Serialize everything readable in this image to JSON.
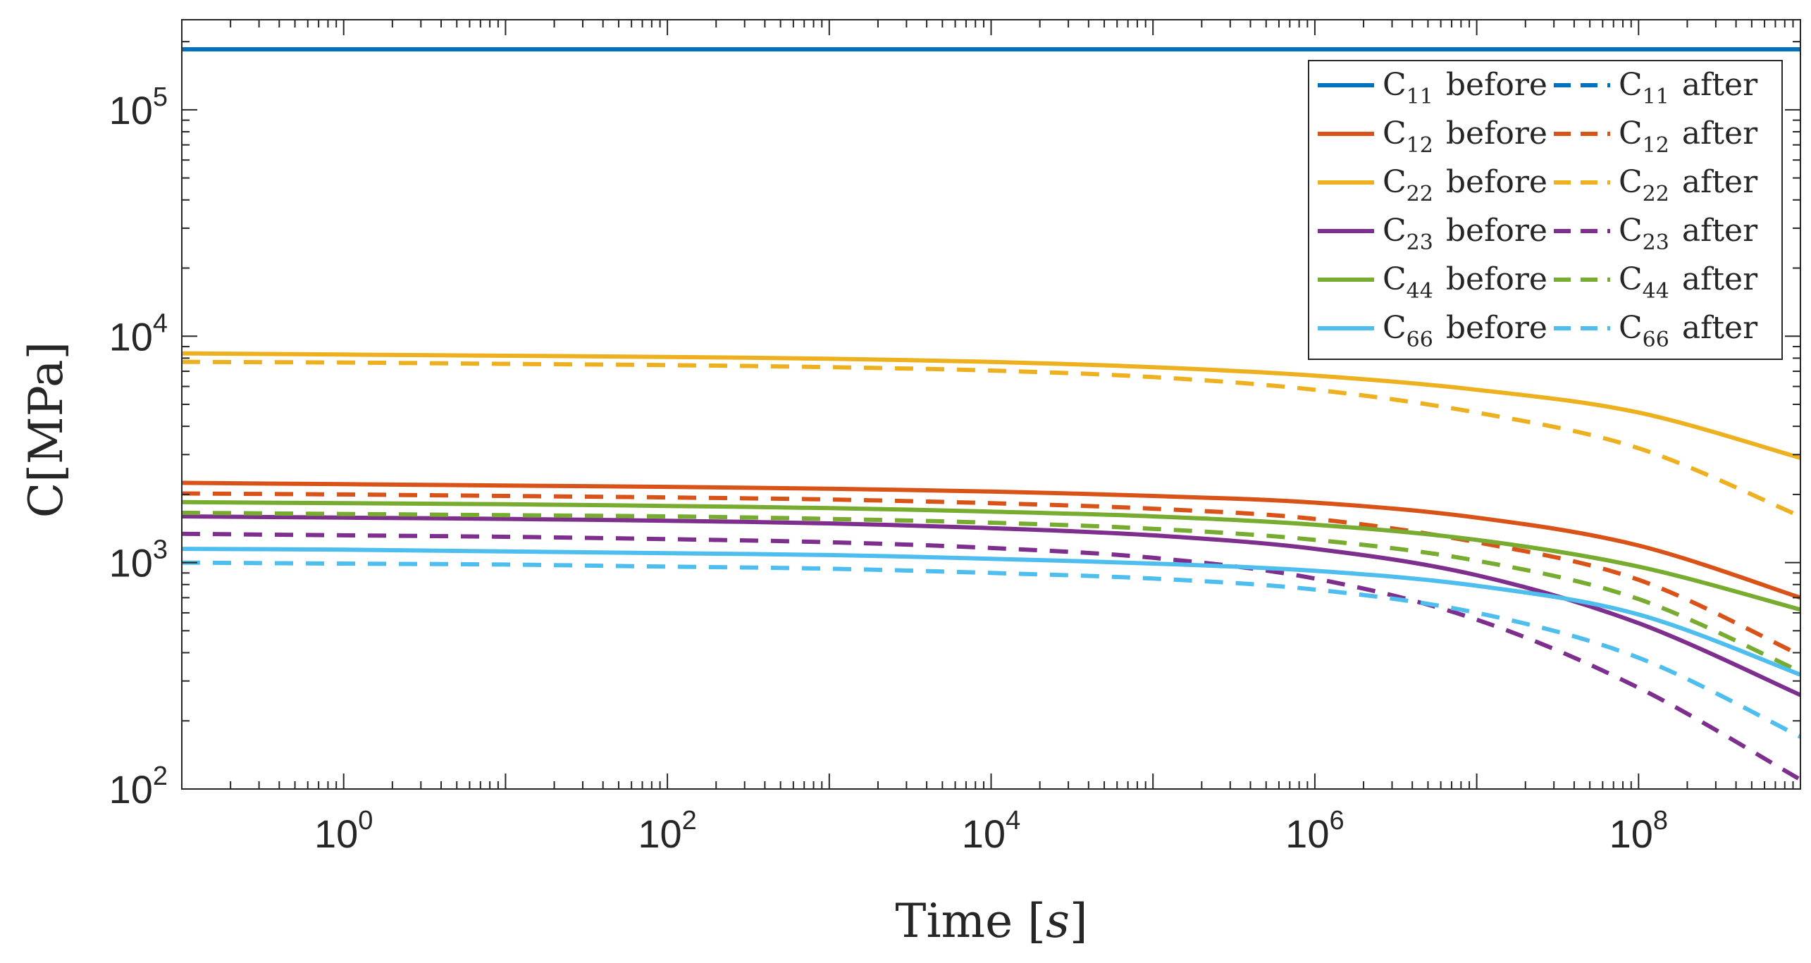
{
  "chart_data": {
    "type": "line",
    "title": "",
    "xlabel": "Time [s]",
    "xlabel_parts": {
      "prefix": "Time [",
      "var": "s",
      "suffix": "]"
    },
    "ylabel": "C[MPa]",
    "xscale": "log",
    "yscale": "log",
    "xlim": [
      0.1,
      1000000000
    ],
    "ylim": [
      100,
      250000
    ],
    "xticks": [
      1,
      100,
      10000,
      1000000,
      100000000
    ],
    "xtick_labels": [
      {
        "base": "10",
        "exp": "0"
      },
      {
        "base": "10",
        "exp": "2"
      },
      {
        "base": "10",
        "exp": "4"
      },
      {
        "base": "10",
        "exp": "6"
      },
      {
        "base": "10",
        "exp": "8"
      }
    ],
    "yticks": [
      100,
      1000,
      10000,
      100000
    ],
    "ytick_labels": [
      {
        "base": "10",
        "exp": "2"
      },
      {
        "base": "10",
        "exp": "3"
      },
      {
        "base": "10",
        "exp": "4"
      },
      {
        "base": "10",
        "exp": "5"
      }
    ],
    "legend_position": "top-right",
    "x": [
      0.1,
      1,
      10,
      100,
      1000,
      10000,
      100000,
      1000000,
      10000000,
      100000000,
      1000000000
    ],
    "series": [
      {
        "name": "C11 before",
        "sym": "C",
        "sub": "11",
        "word": "before",
        "color": "#0072BD",
        "dash": false,
        "values": [
          185000,
          185000,
          185000,
          185000,
          185000,
          185000,
          185000,
          185000,
          185000,
          185000,
          185000
        ]
      },
      {
        "name": "C11 after",
        "sym": "C",
        "sub": "11",
        "word": "after",
        "color": "#0072BD",
        "dash": true,
        "values": [
          185000,
          185000,
          185000,
          185000,
          185000,
          185000,
          185000,
          185000,
          185000,
          185000,
          185000
        ]
      },
      {
        "name": "C12 before",
        "sym": "C",
        "sub": "12",
        "word": "before",
        "color": "#D95319",
        "dash": false,
        "values": [
          2250,
          2220,
          2190,
          2160,
          2120,
          2060,
          1970,
          1840,
          1580,
          1190,
          700
        ]
      },
      {
        "name": "C12 after",
        "sym": "C",
        "sub": "12",
        "word": "after",
        "color": "#D95319",
        "dash": true,
        "values": [
          2020,
          2000,
          1970,
          1940,
          1900,
          1830,
          1730,
          1560,
          1230,
          840,
          390
        ]
      },
      {
        "name": "C22 before",
        "sym": "C",
        "sub": "22",
        "word": "before",
        "color": "#EDB120",
        "dash": false,
        "values": [
          8400,
          8300,
          8200,
          8100,
          7950,
          7700,
          7300,
          6700,
          5800,
          4600,
          2900
        ]
      },
      {
        "name": "C22 after",
        "sym": "C",
        "sub": "22",
        "word": "after",
        "color": "#EDB120",
        "dash": true,
        "values": [
          7700,
          7650,
          7550,
          7450,
          7300,
          7050,
          6600,
          5800,
          4600,
          3200,
          1600
        ]
      },
      {
        "name": "C23 before",
        "sym": "C",
        "sub": "23",
        "word": "before",
        "color": "#7E2F8E",
        "dash": false,
        "values": [
          1600,
          1580,
          1560,
          1530,
          1490,
          1420,
          1320,
          1150,
          880,
          540,
          260
        ]
      },
      {
        "name": "C23 after",
        "sym": "C",
        "sub": "23",
        "word": "after",
        "color": "#7E2F8E",
        "dash": true,
        "values": [
          1340,
          1320,
          1300,
          1270,
          1230,
          1160,
          1050,
          850,
          560,
          280,
          110
        ]
      },
      {
        "name": "C44 before",
        "sym": "C",
        "sub": "44",
        "word": "before",
        "color": "#77AC30",
        "dash": false,
        "values": [
          1850,
          1830,
          1810,
          1780,
          1740,
          1680,
          1600,
          1470,
          1260,
          960,
          620
        ]
      },
      {
        "name": "C44 after",
        "sym": "C",
        "sub": "44",
        "word": "after",
        "color": "#77AC30",
        "dash": true,
        "values": [
          1660,
          1640,
          1620,
          1600,
          1560,
          1500,
          1410,
          1260,
          1020,
          690,
          330
        ]
      },
      {
        "name": "C66 before",
        "sym": "C",
        "sub": "66",
        "word": "before",
        "color": "#4DBEEE",
        "dash": false,
        "values": [
          1150,
          1140,
          1120,
          1100,
          1080,
          1040,
          990,
          920,
          790,
          590,
          320
        ]
      },
      {
        "name": "C66 after",
        "sym": "C",
        "sub": "66",
        "word": "after",
        "color": "#4DBEEE",
        "dash": true,
        "values": [
          1000,
          990,
          980,
          960,
          940,
          900,
          850,
          760,
          600,
          380,
          170
        ]
      }
    ]
  }
}
